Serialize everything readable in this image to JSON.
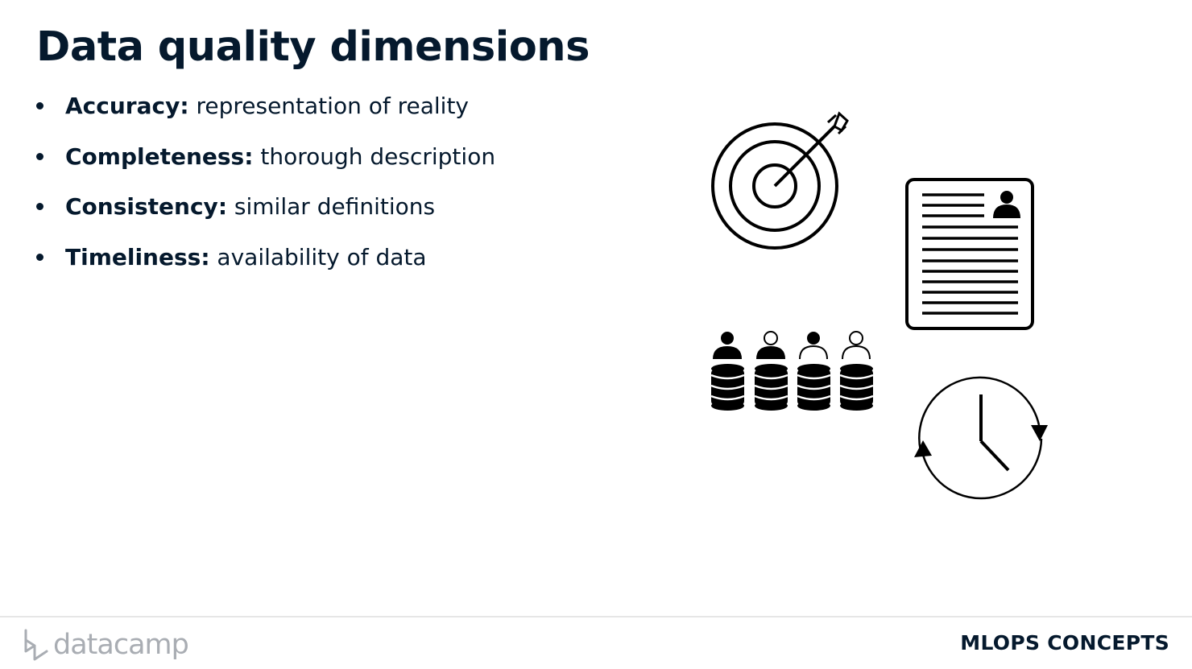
{
  "slide": {
    "title": "Data quality dimensions"
  },
  "bullets": [
    {
      "term": "Accuracy",
      "description": " representation of reality"
    },
    {
      "term": "Completeness",
      "description": " thorough description"
    },
    {
      "term": "Consistency",
      "description": " similar definitions"
    },
    {
      "term": "Timeliness",
      "description": " availability of data"
    }
  ],
  "separator": ":",
  "icons": [
    "target-icon",
    "document-profile-icon",
    "people-database-icon",
    "clock-cycle-icon"
  ],
  "footer": {
    "brand": "datacamp",
    "course": "MLOPS CONCEPTS"
  },
  "colors": {
    "text": "#05192d",
    "brand_gray": "#a9adb3",
    "divider": "#e6e6e6"
  }
}
